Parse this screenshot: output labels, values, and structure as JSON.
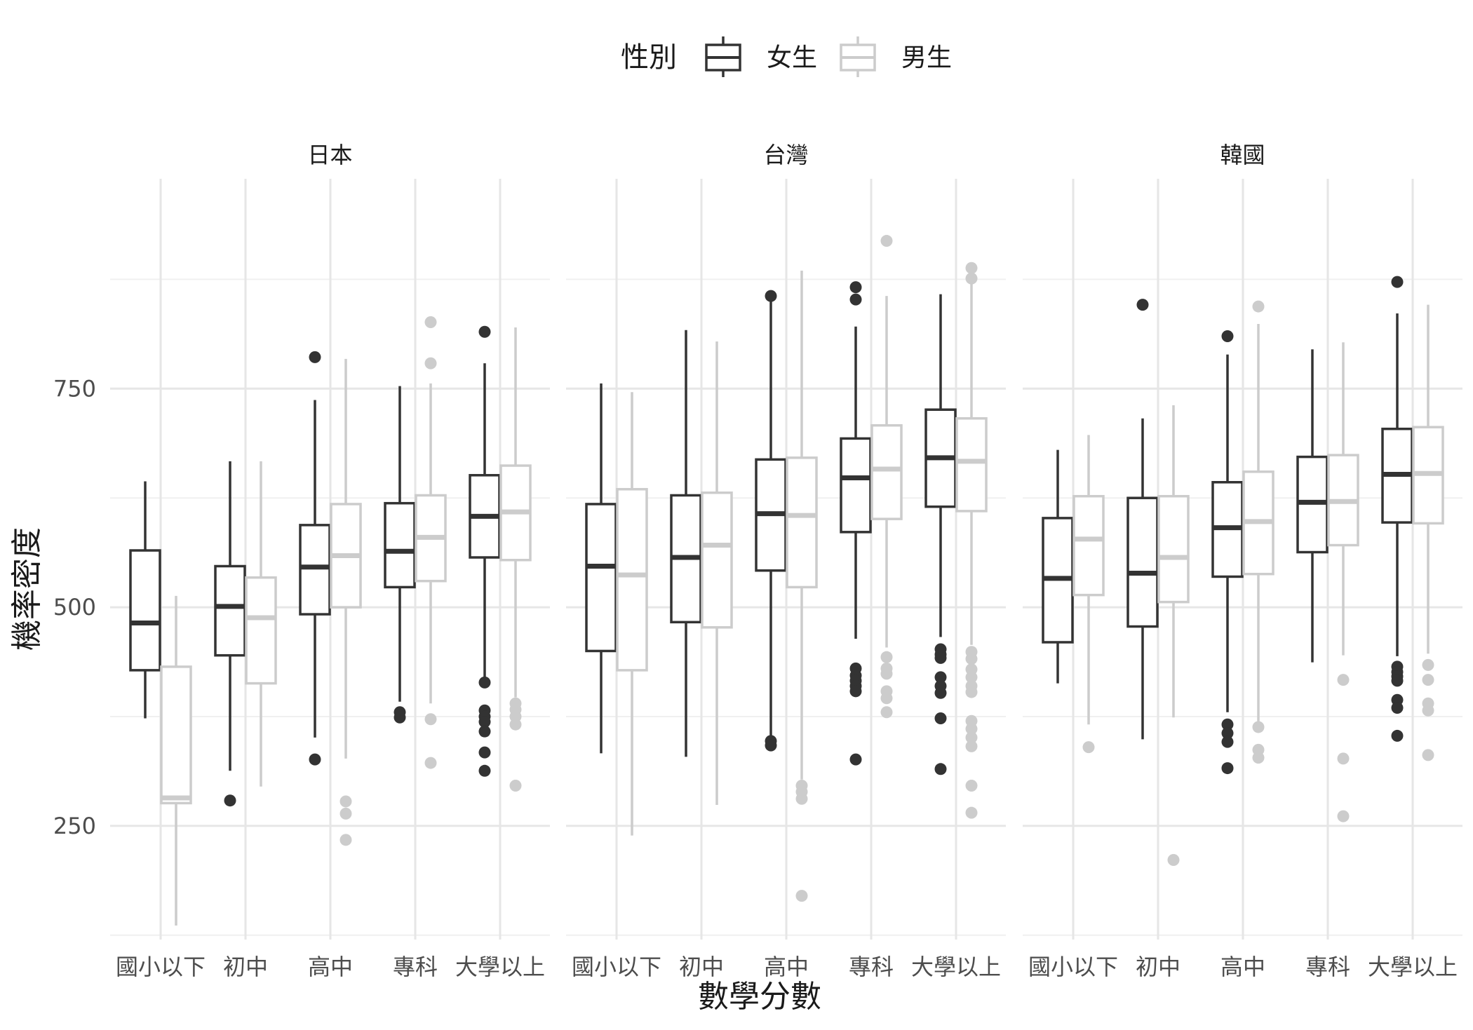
{
  "chart_data": {
    "type": "boxplot",
    "title": "",
    "xlabel": "數學分數",
    "ylabel": "機率密度",
    "ylim": [
      120,
      990
    ],
    "yticks": [
      250,
      500,
      750
    ],
    "grid": true,
    "legend": {
      "title": "性別",
      "position": "top",
      "entries": [
        {
          "name": "女生",
          "color": "#333333"
        },
        {
          "name": "男生",
          "color": "#cccccc"
        }
      ]
    },
    "categories": [
      "國小以下",
      "初中",
      "高中",
      "專科",
      "大學以上"
    ],
    "facets": [
      {
        "label": "日本",
        "series": [
          {
            "name": "女生",
            "boxes": [
              {
                "lower": 373,
                "q1": 428,
                "median": 482,
                "q3": 565,
                "upper": 644,
                "outliers": []
              },
              {
                "lower": 313,
                "q1": 445,
                "median": 501,
                "q3": 547,
                "upper": 667,
                "outliers": [
                  279
                ]
              },
              {
                "lower": 351,
                "q1": 492,
                "median": 546,
                "q3": 594,
                "upper": 737,
                "outliers": [
                  786,
                  326
                ]
              },
              {
                "lower": 392,
                "q1": 523,
                "median": 564,
                "q3": 619,
                "upper": 753,
                "outliers": [
                  380,
                  374
                ]
              },
              {
                "lower": 411,
                "q1": 557,
                "median": 604,
                "q3": 651,
                "upper": 779,
                "outliers": [
                  815,
                  414,
                  382,
                  375,
                  369,
                  358,
                  334,
                  313
                ]
              }
            ]
          },
          {
            "name": "男生",
            "boxes": [
              {
                "lower": 136,
                "q1": 276,
                "median": 282,
                "q3": 432,
                "upper": 513,
                "outliers": []
              },
              {
                "lower": 295,
                "q1": 413,
                "median": 488,
                "q3": 534,
                "upper": 667,
                "outliers": []
              },
              {
                "lower": 327,
                "q1": 500,
                "median": 559,
                "q3": 618,
                "upper": 784,
                "outliers": [
                  278,
                  264,
                  234
                ]
              },
              {
                "lower": 390,
                "q1": 530,
                "median": 580,
                "q3": 628,
                "upper": 756,
                "outliers": [
                  826,
                  779,
                  372,
                  322
                ]
              },
              {
                "lower": 397,
                "q1": 554,
                "median": 609,
                "q3": 662,
                "upper": 820,
                "outliers": [
                  390,
                  383,
                  375,
                  366,
                  296
                ]
              }
            ]
          }
        ]
      },
      {
        "label": "台灣",
        "series": [
          {
            "name": "女生",
            "boxes": [
              {
                "lower": 333,
                "q1": 450,
                "median": 547,
                "q3": 618,
                "upper": 756,
                "outliers": []
              },
              {
                "lower": 329,
                "q1": 483,
                "median": 557,
                "q3": 628,
                "upper": 817,
                "outliers": []
              },
              {
                "lower": 353,
                "q1": 542,
                "median": 607,
                "q3": 669,
                "upper": 855,
                "outliers": [
                  856,
                  347,
                  342
                ]
              },
              {
                "lower": 464,
                "q1": 586,
                "median": 648,
                "q3": 693,
                "upper": 821,
                "outliers": [
                  866,
                  852,
                  430,
                  422,
                  416,
                  410,
                  404,
                  326
                ]
              },
              {
                "lower": 466,
                "q1": 615,
                "median": 671,
                "q3": 726,
                "upper": 858,
                "outliers": [
                  452,
                  446,
                  442,
                  420,
                  410,
                  402,
                  373,
                  315
                ]
              }
            ]
          },
          {
            "name": "男生",
            "boxes": [
              {
                "lower": 239,
                "q1": 428,
                "median": 537,
                "q3": 635,
                "upper": 746,
                "outliers": []
              },
              {
                "lower": 274,
                "q1": 477,
                "median": 571,
                "q3": 631,
                "upper": 804,
                "outliers": []
              },
              {
                "lower": 303,
                "q1": 523,
                "median": 605,
                "q3": 671,
                "upper": 885,
                "outliers": [
                  296,
                  289,
                  281,
                  170
                ]
              },
              {
                "lower": 454,
                "q1": 601,
                "median": 658,
                "q3": 708,
                "upper": 856,
                "outliers": [
                  919,
                  443,
                  430,
                  424,
                  404,
                  396,
                  380
                ]
              },
              {
                "lower": 457,
                "q1": 610,
                "median": 667,
                "q3": 716,
                "upper": 875,
                "outliers": [
                  888,
                  876,
                  449,
                  441,
                  429,
                  420,
                  410,
                  403,
                  370,
                  361,
                  351,
                  341,
                  296,
                  265
                ]
              }
            ]
          }
        ]
      },
      {
        "label": "韓國",
        "series": [
          {
            "name": "女生",
            "boxes": [
              {
                "lower": 413,
                "q1": 460,
                "median": 533,
                "q3": 602,
                "upper": 680,
                "outliers": []
              },
              {
                "lower": 349,
                "q1": 478,
                "median": 539,
                "q3": 625,
                "upper": 716,
                "outliers": [
                  846
                ]
              },
              {
                "lower": 380,
                "q1": 535,
                "median": 591,
                "q3": 643,
                "upper": 789,
                "outliers": [
                  810,
                  366,
                  356,
                  346,
                  316
                ]
              },
              {
                "lower": 437,
                "q1": 563,
                "median": 620,
                "q3": 672,
                "upper": 795,
                "outliers": []
              },
              {
                "lower": 444,
                "q1": 597,
                "median": 652,
                "q3": 704,
                "upper": 836,
                "outliers": [
                  872,
                  432,
                  426,
                  421,
                  416,
                  394,
                  385,
                  353
                ]
              }
            ]
          },
          {
            "name": "男生",
            "boxes": [
              {
                "lower": 366,
                "q1": 514,
                "median": 578,
                "q3": 627,
                "upper": 697,
                "outliers": [
                  340
                ]
              },
              {
                "lower": 374,
                "q1": 506,
                "median": 557,
                "q3": 627,
                "upper": 731,
                "outliers": [
                  211
                ]
              },
              {
                "lower": 368,
                "q1": 538,
                "median": 598,
                "q3": 655,
                "upper": 824,
                "outliers": [
                  844,
                  363,
                  337,
                  328
                ]
              },
              {
                "lower": 445,
                "q1": 571,
                "median": 621,
                "q3": 674,
                "upper": 803,
                "outliers": [
                  417,
                  327,
                  261
                ]
              },
              {
                "lower": 447,
                "q1": 596,
                "median": 653,
                "q3": 706,
                "upper": 846,
                "outliers": [
                  434,
                  417,
                  390,
                  382,
                  331
                ]
              }
            ]
          }
        ]
      }
    ]
  }
}
